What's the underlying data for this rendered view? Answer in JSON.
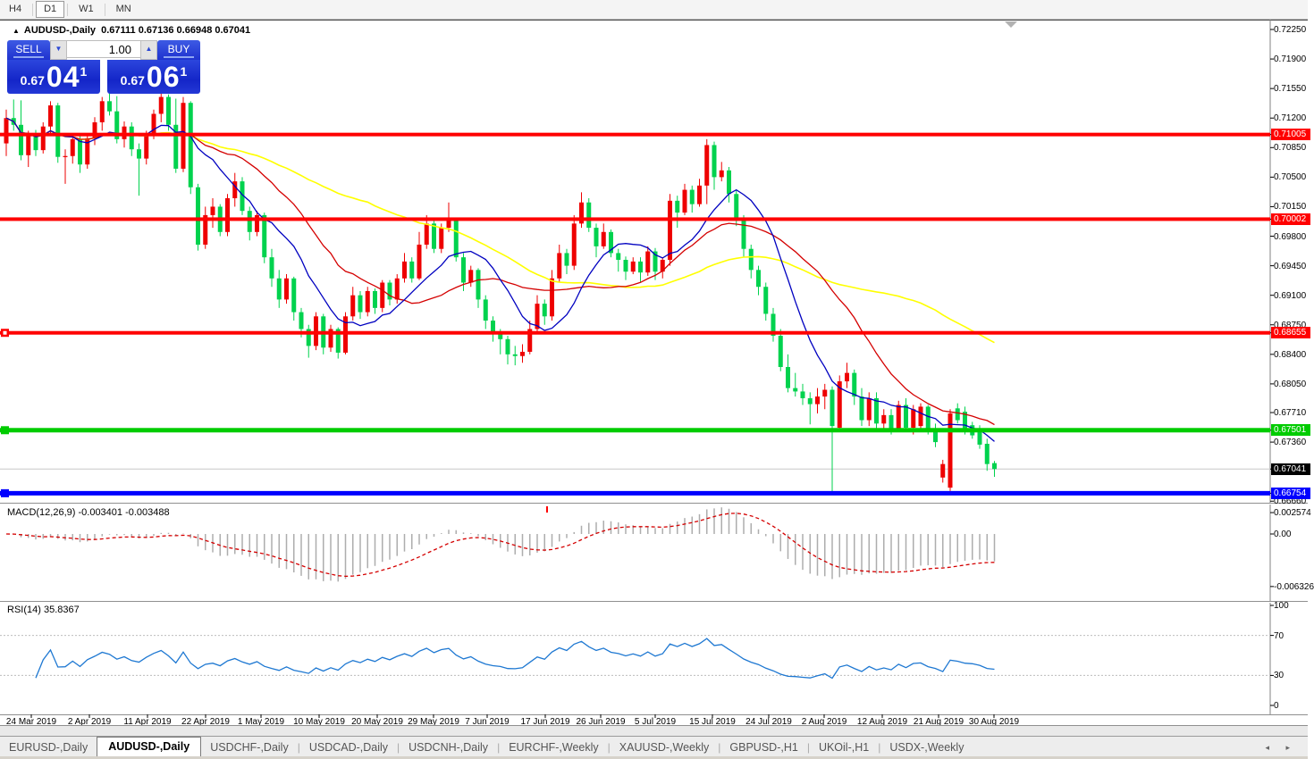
{
  "toolbar": {
    "timeframes": [
      "H4",
      "D1",
      "W1",
      "MN"
    ],
    "active": "D1"
  },
  "chart": {
    "title_symbol": "AUDUSD-,Daily",
    "title_ohlc": "0.67111 0.67136 0.66948 0.67041",
    "colors": {
      "bull_candle": "#EE0000",
      "bear_candle": "#00D24E",
      "ma_fast": "#0000C0",
      "ma_mid": "#D40000",
      "ma_slow": "#FFFF00",
      "macd_hist": "#ADADAD",
      "macd_signal": "#D40000",
      "rsi_line": "#1E78D2",
      "current_price_line": "#C8C8C8"
    }
  },
  "one_click": {
    "sell_label": "SELL",
    "buy_label": "BUY",
    "volume": "1.00",
    "sell_price_small": "0.67",
    "sell_price_big": "04",
    "sell_price_sup": "1",
    "buy_price_small": "0.67",
    "buy_price_big": "06",
    "buy_price_sup": "1"
  },
  "price_axis": {
    "ticks": [
      {
        "label": "0.72250",
        "price": 0.7225
      },
      {
        "label": "0.71900",
        "price": 0.719
      },
      {
        "label": "0.71550",
        "price": 0.7155
      },
      {
        "label": "0.71200",
        "price": 0.712
      },
      {
        "label": "0.70850",
        "price": 0.7085
      },
      {
        "label": "0.70500",
        "price": 0.705
      },
      {
        "label": "0.70150",
        "price": 0.7015
      },
      {
        "label": "0.69800",
        "price": 0.698
      },
      {
        "label": "0.69450",
        "price": 0.6945
      },
      {
        "label": "0.69100",
        "price": 0.691
      },
      {
        "label": "0.68750",
        "price": 0.6875
      },
      {
        "label": "0.68400",
        "price": 0.684
      },
      {
        "label": "0.68050",
        "price": 0.6805
      },
      {
        "label": "0.67710",
        "price": 0.6771
      },
      {
        "label": "0.67360",
        "price": 0.6736
      },
      {
        "label": "0.66660",
        "price": 0.6666
      }
    ],
    "highlights": [
      {
        "label": "0.71005",
        "price": 0.71005,
        "bg": "#FF0000"
      },
      {
        "label": "0.70002",
        "price": 0.70002,
        "bg": "#FF0000"
      },
      {
        "label": "0.68655",
        "price": 0.68655,
        "bg": "#FF0000"
      },
      {
        "label": "0.67501",
        "price": 0.67501,
        "bg": "#00CC00"
      },
      {
        "label": "0.67041",
        "price": 0.67041,
        "bg": "#000000"
      },
      {
        "label": "0.66754",
        "price": 0.66754,
        "bg": "#0000FF"
      }
    ]
  },
  "macd": {
    "label": "MACD(12,26,9)",
    "values": "-0.003401 -0.003488",
    "axis": [
      {
        "label": "0.002574",
        "v": 0.002574
      },
      {
        "label": "0.00",
        "v": 0
      },
      {
        "label": "-0.006326",
        "v": -0.006326
      }
    ]
  },
  "rsi": {
    "label": "RSI(14)",
    "value": "35.8367",
    "axis": [
      {
        "label": "100",
        "v": 100
      },
      {
        "label": "70",
        "v": 70
      },
      {
        "label": "30",
        "v": 30
      },
      {
        "label": "0",
        "v": 0
      }
    ],
    "levels": [
      70,
      30
    ]
  },
  "tabs": {
    "items": [
      "EURUSD-,Daily",
      "AUDUSD-,Daily",
      "USDCHF-,Daily",
      "USDCAD-,Daily",
      "USDCNH-,Daily",
      "EURCHF-,Weekly",
      "XAUUSD-,Weekly",
      "GBPUSD-,H1",
      "UKOil-,H1",
      "USDX-,Weekly"
    ],
    "active_index": 1
  },
  "chart_data": {
    "type": "candlestick",
    "symbol": "AUDUSD-,Daily",
    "current_price": 0.67041,
    "ohlc_current": {
      "open": 0.67111,
      "high": 0.67136,
      "low": 0.66948,
      "close": 0.67041
    },
    "y_range": [
      0.6655,
      0.724
    ],
    "horizontal_lines": [
      {
        "price": 0.71005,
        "color": "#FF0000",
        "width": 4,
        "handle": false
      },
      {
        "price": 0.70002,
        "color": "#FF0000",
        "width": 4,
        "handle": false
      },
      {
        "price": 0.68655,
        "color": "#FF0000",
        "width": 4,
        "handle": true
      },
      {
        "price": 0.67501,
        "color": "#00CC00",
        "width": 5,
        "handle": true
      },
      {
        "price": 0.66754,
        "color": "#0000FF",
        "width": 5,
        "handle": true
      }
    ],
    "moving_averages": [
      {
        "period": 10,
        "color": "#0000C0"
      },
      {
        "period": 21,
        "color": "#D40000"
      },
      {
        "period": 50,
        "color": "#FFFF00"
      }
    ],
    "date_labels": [
      {
        "x": 35,
        "label": "24 Mar 2019"
      },
      {
        "x": 100,
        "label": "2 Apr 2019"
      },
      {
        "x": 165,
        "label": "11 Apr 2019"
      },
      {
        "x": 230,
        "label": "22 Apr 2019"
      },
      {
        "x": 292,
        "label": "1 May 2019"
      },
      {
        "x": 357,
        "label": "10 May 2019"
      },
      {
        "x": 422,
        "label": "20 May 2019"
      },
      {
        "x": 485,
        "label": "29 May 2019"
      },
      {
        "x": 545,
        "label": "7 Jun 2019"
      },
      {
        "x": 610,
        "label": "17 Jun 2019"
      },
      {
        "x": 672,
        "label": "26 Jun 2019"
      },
      {
        "x": 733,
        "label": "5 Jul 2019"
      },
      {
        "x": 797,
        "label": "15 Jul 2019"
      },
      {
        "x": 860,
        "label": "24 Jul 2019"
      },
      {
        "x": 922,
        "label": "2 Aug 2019"
      },
      {
        "x": 987,
        "label": "12 Aug 2019"
      },
      {
        "x": 1050,
        "label": "21 Aug 2019"
      },
      {
        "x": 1112,
        "label": "30 Aug 2019"
      }
    ],
    "candles": [
      [
        0.709,
        0.713,
        0.7075,
        0.712
      ],
      [
        0.712,
        0.7142,
        0.7105,
        0.7112
      ],
      [
        0.7112,
        0.7141,
        0.707,
        0.7076
      ],
      [
        0.7076,
        0.7105,
        0.7062,
        0.7099
      ],
      [
        0.7099,
        0.7106,
        0.7075,
        0.7082
      ],
      [
        0.7082,
        0.7115,
        0.7078,
        0.711
      ],
      [
        0.711,
        0.714,
        0.7102,
        0.7135
      ],
      [
        0.7135,
        0.7138,
        0.7067,
        0.7074
      ],
      [
        0.7074,
        0.7083,
        0.7042,
        0.7075
      ],
      [
        0.7075,
        0.71,
        0.7066,
        0.7095
      ],
      [
        0.7095,
        0.7099,
        0.7055,
        0.7065
      ],
      [
        0.7065,
        0.71,
        0.706,
        0.7096
      ],
      [
        0.7096,
        0.7121,
        0.7088,
        0.7115
      ],
      [
        0.7115,
        0.7145,
        0.7105,
        0.714
      ],
      [
        0.714,
        0.715,
        0.7123,
        0.7128
      ],
      [
        0.7128,
        0.7146,
        0.709,
        0.7095
      ],
      [
        0.7095,
        0.7116,
        0.7085,
        0.711
      ],
      [
        0.711,
        0.7115,
        0.7075,
        0.7083
      ],
      [
        0.7083,
        0.709,
        0.7028,
        0.7072
      ],
      [
        0.7072,
        0.7105,
        0.7065,
        0.71
      ],
      [
        0.71,
        0.713,
        0.7095,
        0.7125
      ],
      [
        0.7125,
        0.715,
        0.7115,
        0.7145
      ],
      [
        0.7145,
        0.7148,
        0.7105,
        0.7112
      ],
      [
        0.7112,
        0.7143,
        0.7055,
        0.706
      ],
      [
        0.706,
        0.7145,
        0.7056,
        0.7138
      ],
      [
        0.7138,
        0.714,
        0.703,
        0.7038
      ],
      [
        0.7038,
        0.7042,
        0.6963,
        0.697
      ],
      [
        0.697,
        0.7015,
        0.6965,
        0.7005
      ],
      [
        0.7005,
        0.7025,
        0.699,
        0.7015
      ],
      [
        0.7015,
        0.7018,
        0.698,
        0.6985
      ],
      [
        0.6985,
        0.703,
        0.698,
        0.7025
      ],
      [
        0.7025,
        0.7055,
        0.7015,
        0.7045
      ],
      [
        0.7045,
        0.705,
        0.7005,
        0.701
      ],
      [
        0.701,
        0.7015,
        0.6975,
        0.6985
      ],
      [
        0.6985,
        0.701,
        0.698,
        0.7005
      ],
      [
        0.7005,
        0.7008,
        0.6948,
        0.6955
      ],
      [
        0.6955,
        0.6965,
        0.692,
        0.693
      ],
      [
        0.693,
        0.694,
        0.6895,
        0.6905
      ],
      [
        0.6905,
        0.6935,
        0.69,
        0.693
      ],
      [
        0.693,
        0.6932,
        0.688,
        0.689
      ],
      [
        0.689,
        0.6895,
        0.686,
        0.687
      ],
      [
        0.687,
        0.6875,
        0.6836,
        0.685
      ],
      [
        0.685,
        0.689,
        0.6845,
        0.6885
      ],
      [
        0.6885,
        0.6888,
        0.684,
        0.6848
      ],
      [
        0.6848,
        0.6875,
        0.6843,
        0.687
      ],
      [
        0.687,
        0.6872,
        0.6835,
        0.6842
      ],
      [
        0.6842,
        0.689,
        0.684,
        0.6885
      ],
      [
        0.6885,
        0.692,
        0.688,
        0.691
      ],
      [
        0.691,
        0.6915,
        0.6882,
        0.689
      ],
      [
        0.689,
        0.692,
        0.6885,
        0.6915
      ],
      [
        0.6915,
        0.6918,
        0.6888,
        0.6895
      ],
      [
        0.6895,
        0.6928,
        0.689,
        0.6925
      ],
      [
        0.6925,
        0.6928,
        0.6898,
        0.6905
      ],
      [
        0.6905,
        0.6935,
        0.69,
        0.693
      ],
      [
        0.693,
        0.696,
        0.6925,
        0.695
      ],
      [
        0.695,
        0.6955,
        0.6925,
        0.693
      ],
      [
        0.693,
        0.6985,
        0.6928,
        0.697
      ],
      [
        0.697,
        0.7005,
        0.6965,
        0.6995
      ],
      [
        0.6995,
        0.7,
        0.696,
        0.6965
      ],
      [
        0.6965,
        0.6995,
        0.696,
        0.699
      ],
      [
        0.699,
        0.702,
        0.6985,
        0.7
      ],
      [
        0.7,
        0.7002,
        0.695,
        0.6955
      ],
      [
        0.6955,
        0.696,
        0.6915,
        0.6925
      ],
      [
        0.6925,
        0.6945,
        0.692,
        0.694
      ],
      [
        0.694,
        0.6942,
        0.6895,
        0.6905
      ],
      [
        0.6905,
        0.691,
        0.687,
        0.688
      ],
      [
        0.688,
        0.6885,
        0.6855,
        0.6865
      ],
      [
        0.6865,
        0.687,
        0.684,
        0.6858
      ],
      [
        0.6858,
        0.6862,
        0.6828,
        0.684
      ],
      [
        0.684,
        0.685,
        0.6827,
        0.6838
      ],
      [
        0.6838,
        0.6852,
        0.683,
        0.6843
      ],
      [
        0.6843,
        0.688,
        0.684,
        0.687
      ],
      [
        0.687,
        0.691,
        0.6865,
        0.69
      ],
      [
        0.69,
        0.6905,
        0.6875,
        0.6885
      ],
      [
        0.6885,
        0.694,
        0.688,
        0.693
      ],
      [
        0.693,
        0.697,
        0.6925,
        0.696
      ],
      [
        0.696,
        0.6965,
        0.6935,
        0.6945
      ],
      [
        0.6945,
        0.7005,
        0.694,
        0.6995
      ],
      [
        0.6995,
        0.7032,
        0.699,
        0.702
      ],
      [
        0.702,
        0.7025,
        0.6985,
        0.699
      ],
      [
        0.699,
        0.6995,
        0.6955,
        0.6968
      ],
      [
        0.6968,
        0.6995,
        0.6965,
        0.6985
      ],
      [
        0.6985,
        0.6988,
        0.6955,
        0.696
      ],
      [
        0.696,
        0.6965,
        0.6938,
        0.6952
      ],
      [
        0.6952,
        0.6956,
        0.6928,
        0.6938
      ],
      [
        0.6938,
        0.6955,
        0.6935,
        0.695
      ],
      [
        0.695,
        0.6955,
        0.6925,
        0.6937
      ],
      [
        0.6937,
        0.6968,
        0.6933,
        0.6962
      ],
      [
        0.6962,
        0.6966,
        0.6928,
        0.6938
      ],
      [
        0.6938,
        0.6955,
        0.693,
        0.6952
      ],
      [
        0.6952,
        0.703,
        0.6945,
        0.7022
      ],
      [
        0.7022,
        0.7028,
        0.699,
        0.7008
      ],
      [
        0.7008,
        0.7042,
        0.7005,
        0.7035
      ],
      [
        0.7035,
        0.704,
        0.7008,
        0.7018
      ],
      [
        0.7018,
        0.7048,
        0.7015,
        0.704
      ],
      [
        0.704,
        0.7095,
        0.7018,
        0.7088
      ],
      [
        0.7088,
        0.7092,
        0.7035,
        0.705
      ],
      [
        0.705,
        0.7068,
        0.7045,
        0.7058
      ],
      [
        0.7058,
        0.7062,
        0.702,
        0.703
      ],
      [
        0.703,
        0.7035,
        0.6992,
        0.7
      ],
      [
        0.7,
        0.7005,
        0.6955,
        0.6965
      ],
      [
        0.6965,
        0.697,
        0.693,
        0.694
      ],
      [
        0.694,
        0.6945,
        0.691,
        0.692
      ],
      [
        0.692,
        0.6925,
        0.688,
        0.6888
      ],
      [
        0.6888,
        0.6895,
        0.6855,
        0.6862
      ],
      [
        0.6862,
        0.687,
        0.682,
        0.6825
      ],
      [
        0.6825,
        0.684,
        0.6795,
        0.68
      ],
      [
        0.68,
        0.6818,
        0.679,
        0.6796
      ],
      [
        0.6796,
        0.6805,
        0.678,
        0.6788
      ],
      [
        0.6788,
        0.6795,
        0.6757,
        0.6781
      ],
      [
        0.6781,
        0.68,
        0.677,
        0.679
      ],
      [
        0.679,
        0.6805,
        0.6775,
        0.6798
      ],
      [
        0.6798,
        0.6802,
        0.6676,
        0.6755
      ],
      [
        0.6753,
        0.6815,
        0.675,
        0.6808
      ],
      [
        0.6808,
        0.683,
        0.68,
        0.6818
      ],
      [
        0.6818,
        0.6822,
        0.678,
        0.679
      ],
      [
        0.679,
        0.68,
        0.6755,
        0.6762
      ],
      [
        0.6762,
        0.6795,
        0.6755,
        0.6788
      ],
      [
        0.6788,
        0.6795,
        0.675,
        0.6758
      ],
      [
        0.6758,
        0.6775,
        0.6748,
        0.6768
      ],
      [
        0.6768,
        0.6775,
        0.6745,
        0.6752
      ],
      [
        0.6752,
        0.6785,
        0.6748,
        0.678
      ],
      [
        0.678,
        0.6788,
        0.6748,
        0.6753
      ],
      [
        0.6753,
        0.678,
        0.6745,
        0.6775
      ],
      [
        0.6755,
        0.6782,
        0.6748,
        0.6778
      ],
      [
        0.6778,
        0.678,
        0.6745,
        0.675
      ],
      [
        0.675,
        0.6758,
        0.673,
        0.6736
      ],
      [
        0.6694,
        0.6715,
        0.6688,
        0.671
      ],
      [
        0.6682,
        0.6775,
        0.6678,
        0.677
      ],
      [
        0.6776,
        0.6782,
        0.6758,
        0.6762
      ],
      [
        0.6772,
        0.6778,
        0.6745,
        0.6748
      ],
      [
        0.6756,
        0.676,
        0.674,
        0.6744
      ],
      [
        0.6752,
        0.6756,
        0.6728,
        0.6733
      ],
      [
        0.6734,
        0.674,
        0.6702,
        0.671
      ],
      [
        0.67111,
        0.67136,
        0.66948,
        0.67041
      ]
    ]
  }
}
